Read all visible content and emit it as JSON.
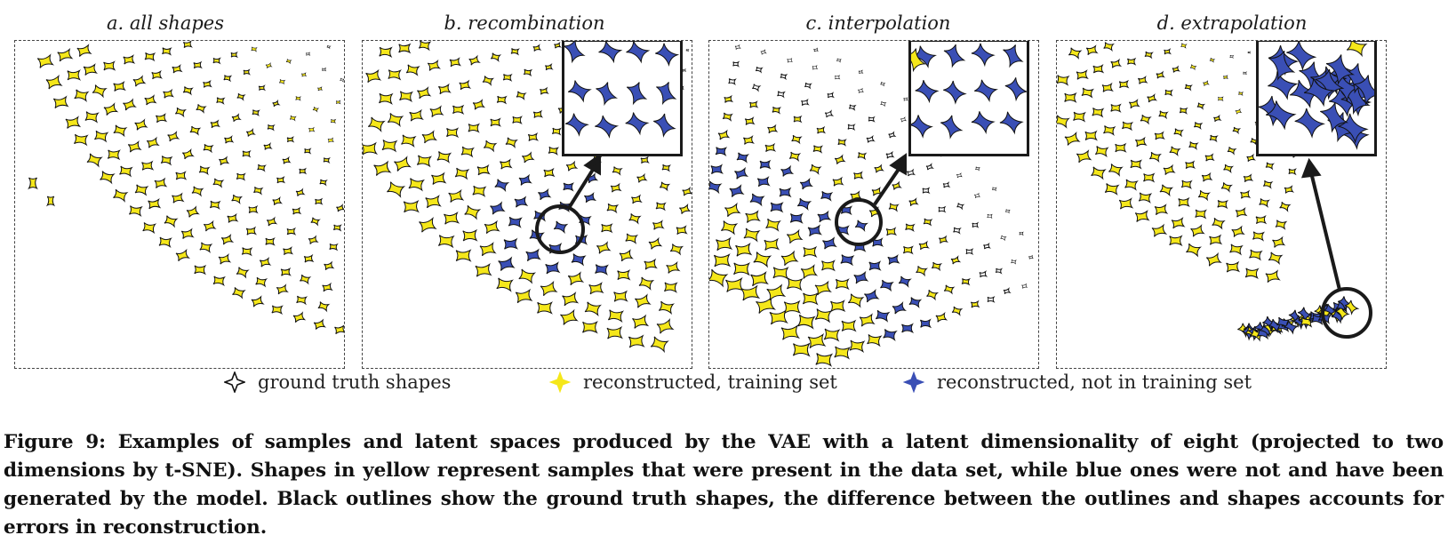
{
  "figure": {
    "panels": [
      {
        "id": "a",
        "title": "a. all shapes",
        "has_inset": false
      },
      {
        "id": "b",
        "title": "b. recombination",
        "has_inset": true
      },
      {
        "id": "c",
        "title": "c. interpolation",
        "has_inset": true
      },
      {
        "id": "d",
        "title": "d. extrapolation",
        "has_inset": true
      }
    ],
    "legend": [
      {
        "label": "ground truth shapes",
        "icon": "outline-star-icon",
        "color": "#ffffff"
      },
      {
        "label": "reconstructed, training set",
        "icon": "yellow-star-icon",
        "color": "#f5e71a"
      },
      {
        "label": "reconstructed, not in training set",
        "icon": "blue-star-icon",
        "color": "#3a4fb5"
      }
    ],
    "caption": "Figure 9: Examples of samples and latent spaces produced by the VAE with a latent dimensionality of eight (projected to two dimensions by t-SNE). Shapes in yellow represent samples that were present in the data set, while blue ones were not and have been generated by the model. Black outlines show the ground truth shapes, the difference between the outlines and shapes accounts for errors in reconstruction.",
    "colors": {
      "yellow": "#f5e71a",
      "blue": "#3a4fb5",
      "outline": "#111111"
    }
  }
}
